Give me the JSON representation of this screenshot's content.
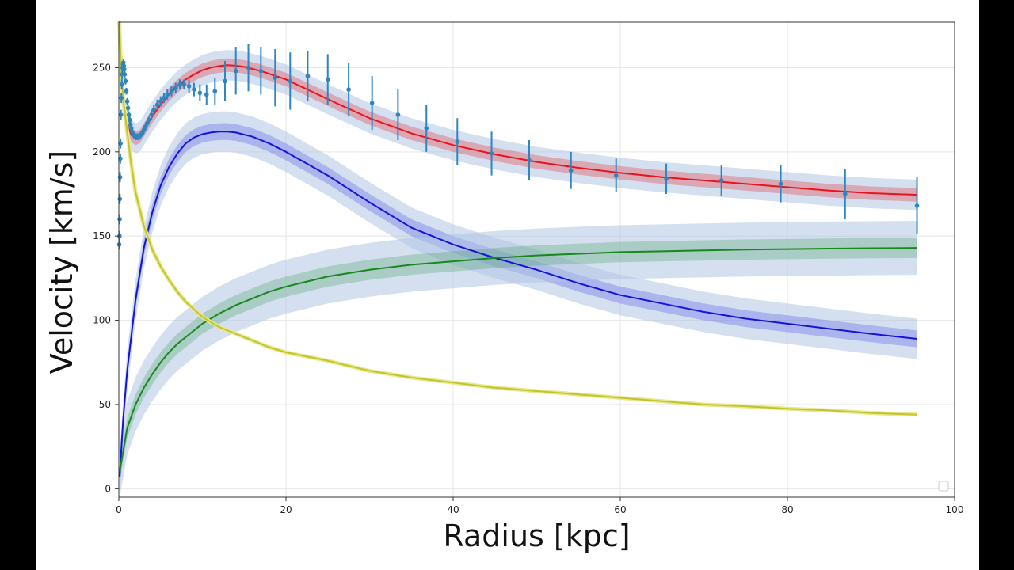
{
  "chart_data": {
    "type": "line",
    "title": "",
    "xlabel": "Radius [kpc]",
    "ylabel": "Velocity [km/s]",
    "xlim": [
      0,
      100
    ],
    "ylim": [
      -5,
      277
    ],
    "x_ticks": [
      0,
      20,
      40,
      60,
      80,
      100
    ],
    "y_ticks": [
      0,
      50,
      100,
      150,
      200,
      250
    ],
    "grid": true,
    "legend": "bottom-right (empty)",
    "series": [
      {
        "kind": "model",
        "color": "#e8141c",
        "band_color": "#e8141c",
        "points": [
          [
            0.3,
            238
          ],
          [
            0.6,
            226
          ],
          [
            1,
            216
          ],
          [
            1.5,
            210
          ],
          [
            2,
            208
          ],
          [
            2.5,
            209
          ],
          [
            3,
            213
          ],
          [
            4,
            221
          ],
          [
            5,
            228
          ],
          [
            6,
            234
          ],
          [
            7,
            239
          ],
          [
            8,
            243
          ],
          [
            9,
            246
          ],
          [
            10,
            248.5
          ],
          [
            11,
            250
          ],
          [
            12,
            251
          ],
          [
            13,
            251.5
          ],
          [
            14,
            251.2
          ],
          [
            15,
            250.5
          ],
          [
            17,
            248
          ],
          [
            20,
            243
          ],
          [
            23,
            236
          ],
          [
            26,
            229
          ],
          [
            30,
            220
          ],
          [
            35,
            211
          ],
          [
            40,
            204
          ],
          [
            45,
            198.5
          ],
          [
            50,
            194
          ],
          [
            55,
            190.5
          ],
          [
            60,
            187.5
          ],
          [
            65,
            185
          ],
          [
            70,
            183
          ],
          [
            75,
            181
          ],
          [
            80,
            179
          ],
          [
            85,
            177
          ],
          [
            90,
            175.5
          ],
          [
            95.5,
            174.5
          ]
        ],
        "band_inner": 4,
        "band_outer": 9
      },
      {
        "kind": "model",
        "color": "#1414d8",
        "band_color": "#4444e6",
        "points": [
          [
            0.1,
            7
          ],
          [
            0.5,
            40
          ],
          [
            1,
            70
          ],
          [
            2,
            112
          ],
          [
            3,
            143
          ],
          [
            4,
            164
          ],
          [
            5,
            180
          ],
          [
            6,
            191
          ],
          [
            7,
            199
          ],
          [
            8,
            205
          ],
          [
            9,
            208.5
          ],
          [
            10,
            210.5
          ],
          [
            11,
            211.5
          ],
          [
            12,
            212
          ],
          [
            13,
            212
          ],
          [
            14,
            211.5
          ],
          [
            16,
            209
          ],
          [
            18,
            205
          ],
          [
            20,
            200
          ],
          [
            25,
            186
          ],
          [
            30,
            170
          ],
          [
            35,
            155
          ],
          [
            40,
            145
          ],
          [
            45,
            137
          ],
          [
            50,
            130
          ],
          [
            55,
            122
          ],
          [
            60,
            115
          ],
          [
            65,
            110
          ],
          [
            70,
            105
          ],
          [
            75,
            101
          ],
          [
            80,
            98
          ],
          [
            85,
            95
          ],
          [
            90,
            92
          ],
          [
            95.5,
            89
          ]
        ],
        "band_inner": 5,
        "band_outer": 12
      },
      {
        "kind": "model",
        "color": "#18881e",
        "band_color": "#3a9a55",
        "points": [
          [
            0.1,
            10
          ],
          [
            1,
            36
          ],
          [
            2,
            50
          ],
          [
            3,
            60
          ],
          [
            4,
            68
          ],
          [
            5,
            75
          ],
          [
            6,
            81
          ],
          [
            7,
            86
          ],
          [
            8,
            90
          ],
          [
            10,
            98
          ],
          [
            12,
            104
          ],
          [
            14,
            109
          ],
          [
            16,
            113
          ],
          [
            18,
            117
          ],
          [
            20,
            120
          ],
          [
            25,
            126
          ],
          [
            30,
            130
          ],
          [
            35,
            133
          ],
          [
            40,
            135
          ],
          [
            45,
            137
          ],
          [
            50,
            138.5
          ],
          [
            55,
            139.5
          ],
          [
            60,
            140.5
          ],
          [
            65,
            141
          ],
          [
            70,
            141.5
          ],
          [
            75,
            142
          ],
          [
            80,
            142.3
          ],
          [
            85,
            142.6
          ],
          [
            90,
            142.8
          ],
          [
            95.5,
            143
          ]
        ],
        "band_inner": 6,
        "band_outer": 16
      },
      {
        "kind": "model",
        "color": "#c4c42a",
        "band_color": "#c4c42a",
        "points": [
          [
            0.05,
            278
          ],
          [
            0.3,
            245
          ],
          [
            0.6,
            228
          ],
          [
            1,
            212
          ],
          [
            1.5,
            192
          ],
          [
            2,
            176
          ],
          [
            3,
            156
          ],
          [
            4,
            142
          ],
          [
            5,
            132
          ],
          [
            6,
            124
          ],
          [
            7,
            117
          ],
          [
            8,
            111
          ],
          [
            10,
            102
          ],
          [
            12,
            96
          ],
          [
            14,
            92
          ],
          [
            16,
            88
          ],
          [
            18,
            84
          ],
          [
            20,
            81
          ],
          [
            25,
            76
          ],
          [
            30,
            70
          ],
          [
            35,
            66
          ],
          [
            40,
            63
          ],
          [
            45,
            60
          ],
          [
            50,
            58
          ],
          [
            55,
            56
          ],
          [
            60,
            54
          ],
          [
            65,
            52
          ],
          [
            70,
            50
          ],
          [
            75,
            49
          ],
          [
            80,
            47.5
          ],
          [
            85,
            46.5
          ],
          [
            90,
            45
          ],
          [
            95.5,
            44
          ]
        ],
        "band_inner": 0,
        "band_outer": 1
      }
    ],
    "observed": {
      "color": "#2e86c1",
      "points": [
        [
          0.05,
          145,
          3
        ],
        [
          0.08,
          150,
          3
        ],
        [
          0.1,
          160,
          3
        ],
        [
          0.12,
          172,
          3
        ],
        [
          0.15,
          185,
          3
        ],
        [
          0.18,
          196,
          3
        ],
        [
          0.2,
          205,
          3
        ],
        [
          0.25,
          222,
          3
        ],
        [
          0.3,
          232,
          3
        ],
        [
          0.35,
          240,
          3
        ],
        [
          0.4,
          246,
          3
        ],
        [
          0.45,
          250,
          3
        ],
        [
          0.5,
          252,
          2
        ],
        [
          0.55,
          253,
          2
        ],
        [
          0.6,
          251,
          2
        ],
        [
          0.65,
          249,
          2
        ],
        [
          0.7,
          246,
          2
        ],
        [
          0.8,
          242,
          2
        ],
        [
          0.9,
          236,
          2
        ],
        [
          1.0,
          230,
          2
        ],
        [
          1.1,
          226,
          2
        ],
        [
          1.2,
          222,
          2
        ],
        [
          1.3,
          219,
          2
        ],
        [
          1.4,
          216,
          2
        ],
        [
          1.5,
          214,
          2
        ],
        [
          1.6,
          212,
          2
        ],
        [
          1.8,
          210,
          2
        ],
        [
          2.0,
          209,
          2
        ],
        [
          2.2,
          209,
          2
        ],
        [
          2.4,
          209,
          2
        ],
        [
          2.6,
          210,
          2
        ],
        [
          2.8,
          211,
          2
        ],
        [
          3.0,
          213,
          2
        ],
        [
          3.2,
          215,
          2
        ],
        [
          3.4,
          217,
          2
        ],
        [
          3.6,
          219,
          2
        ],
        [
          3.9,
          222,
          3
        ],
        [
          4.2,
          225,
          3
        ],
        [
          4.6,
          228,
          3
        ],
        [
          5.0,
          230,
          3
        ],
        [
          5.4,
          232,
          3
        ],
        [
          5.8,
          234,
          3
        ],
        [
          6.3,
          236,
          3
        ],
        [
          6.8,
          238,
          3
        ],
        [
          7.3,
          240,
          3
        ],
        [
          7.8,
          240,
          3
        ],
        [
          8.4,
          239,
          4
        ],
        [
          9.0,
          237,
          4
        ],
        [
          9.7,
          235,
          5
        ],
        [
          10.5,
          234,
          6
        ],
        [
          11.5,
          236,
          8
        ],
        [
          12.7,
          242,
          12
        ],
        [
          14.0,
          248,
          14
        ],
        [
          15.5,
          250,
          14
        ],
        [
          17.0,
          248,
          14
        ],
        [
          18.7,
          244,
          17
        ],
        [
          20.5,
          242,
          17
        ],
        [
          22.6,
          245,
          15
        ],
        [
          25.0,
          243,
          15
        ],
        [
          27.5,
          237,
          16
        ],
        [
          30.3,
          229,
          16
        ],
        [
          33.4,
          222,
          15
        ],
        [
          36.8,
          214,
          14
        ],
        [
          40.5,
          206,
          14
        ],
        [
          44.6,
          199,
          13
        ],
        [
          49.1,
          195,
          12
        ],
        [
          54.1,
          189,
          11
        ],
        [
          59.5,
          186,
          10
        ],
        [
          65.5,
          184,
          9
        ],
        [
          72.1,
          183,
          9
        ],
        [
          79.2,
          181,
          11
        ],
        [
          86.9,
          175,
          15
        ],
        [
          95.5,
          168,
          17
        ]
      ]
    }
  }
}
